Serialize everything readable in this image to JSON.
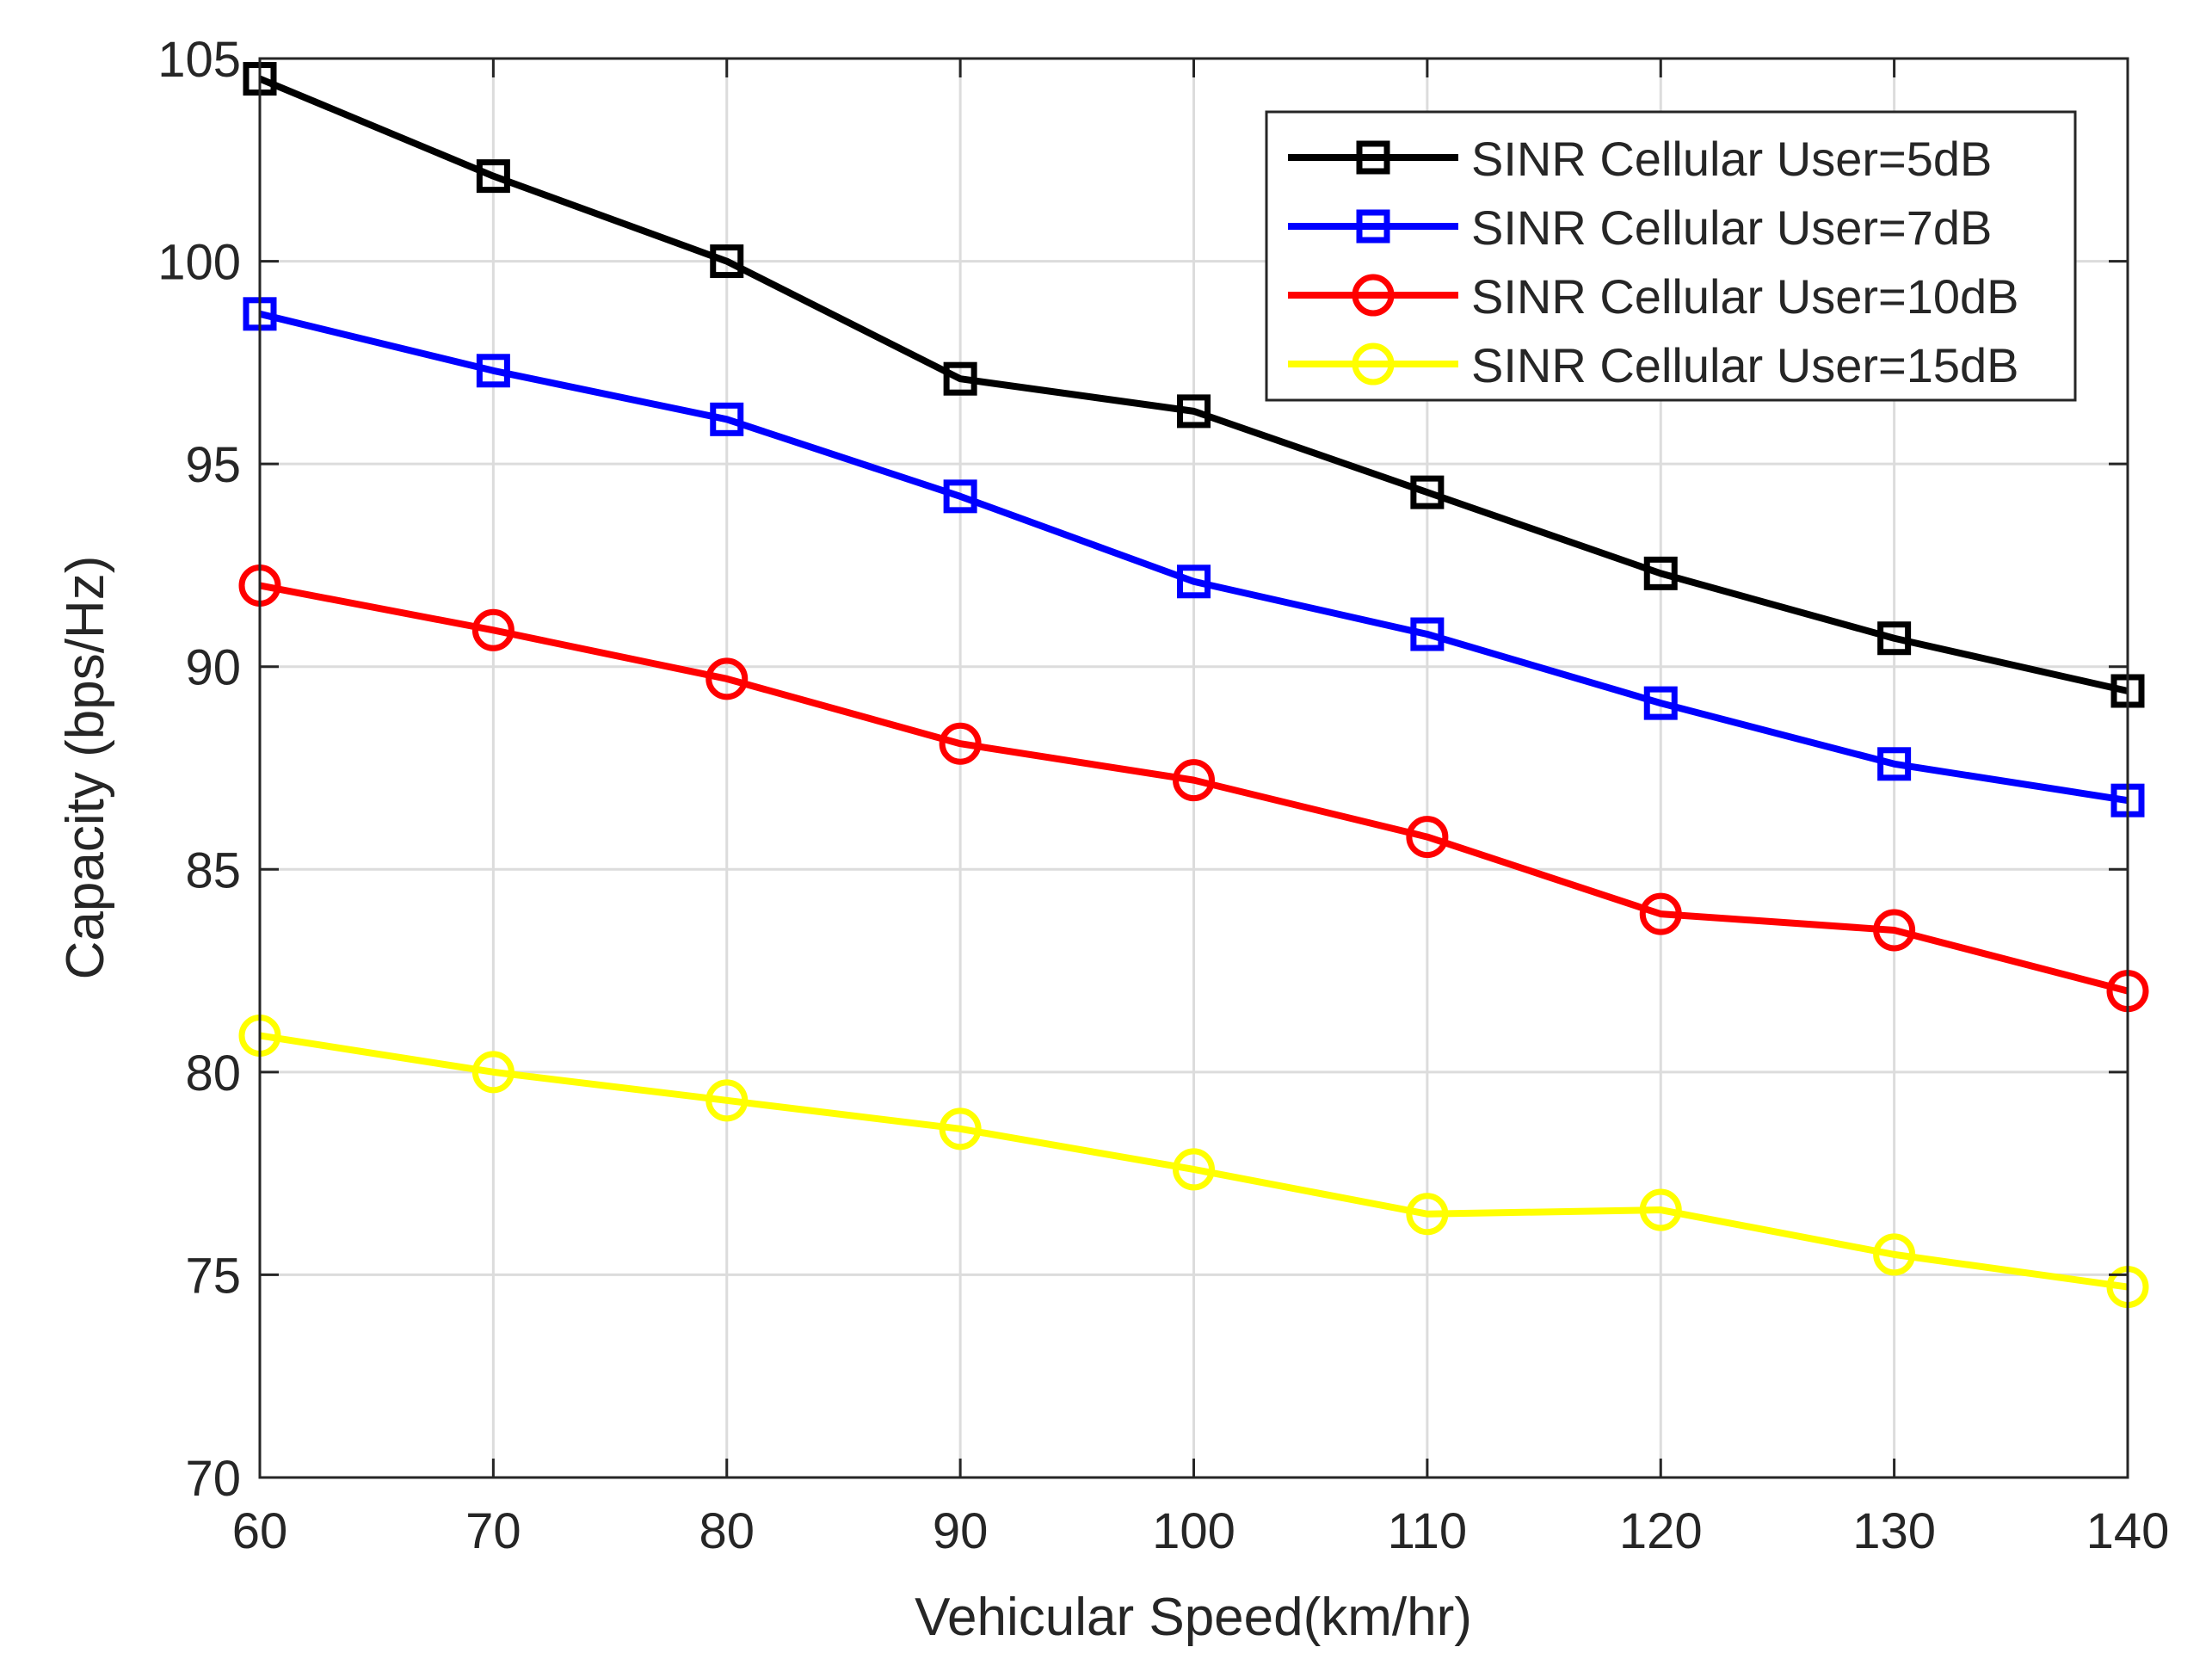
{
  "chart_data": {
    "type": "line",
    "title": "",
    "xlabel": "Vehicular Speed(km/hr)",
    "ylabel": "Capacity (bps/Hz)",
    "x": [
      60,
      70,
      80,
      90,
      100,
      110,
      120,
      130,
      140
    ],
    "xlim": [
      60,
      140
    ],
    "ylim": [
      70,
      105
    ],
    "xticks": [
      "60",
      "70",
      "80",
      "90",
      "100",
      "110",
      "120",
      "130",
      "140"
    ],
    "yticks": [
      "70",
      "75",
      "80",
      "85",
      "90",
      "95",
      "100",
      "105"
    ],
    "grid": true,
    "legend_position": "top-right",
    "series": [
      {
        "name": "SINR Cellular User=5dB",
        "color": "#000000",
        "marker": "square",
        "values": [
          104.5,
          102.1,
          100.0,
          97.1,
          96.3,
          94.3,
          92.3,
          90.7,
          89.4
        ]
      },
      {
        "name": "SINR Cellular User=7dB",
        "color": "#0000ff",
        "marker": "square",
        "values": [
          98.7,
          97.3,
          96.1,
          94.2,
          92.1,
          90.8,
          89.1,
          87.6,
          86.7
        ]
      },
      {
        "name": "SINR Cellular User=10dB",
        "color": "#ff0000",
        "marker": "circle",
        "values": [
          92.0,
          90.9,
          89.7,
          88.1,
          87.2,
          85.8,
          83.9,
          83.5,
          82.0
        ]
      },
      {
        "name": "SINR Cellular User=15dB",
        "color": "#ffff00",
        "marker": "circle",
        "values": [
          80.9,
          80.0,
          79.3,
          78.6,
          77.6,
          76.5,
          76.6,
          75.5,
          74.7
        ]
      }
    ]
  }
}
